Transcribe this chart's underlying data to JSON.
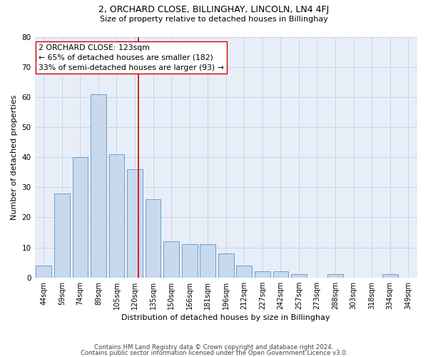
{
  "title": "2, ORCHARD CLOSE, BILLINGHAY, LINCOLN, LN4 4FJ",
  "subtitle": "Size of property relative to detached houses in Billinghay",
  "xlabel": "Distribution of detached houses by size in Billinghay",
  "ylabel": "Number of detached properties",
  "categories": [
    "44sqm",
    "59sqm",
    "74sqm",
    "89sqm",
    "105sqm",
    "120sqm",
    "135sqm",
    "150sqm",
    "166sqm",
    "181sqm",
    "196sqm",
    "212sqm",
    "227sqm",
    "242sqm",
    "257sqm",
    "273sqm",
    "288sqm",
    "303sqm",
    "318sqm",
    "334sqm",
    "349sqm"
  ],
  "values": [
    4,
    28,
    40,
    61,
    41,
    36,
    26,
    12,
    11,
    11,
    8,
    4,
    2,
    2,
    1,
    0,
    1,
    0,
    0,
    1,
    0
  ],
  "bar_color": "#c8d9ee",
  "bar_edge_color": "#6aa0cc",
  "vline_color": "#cc0000",
  "annotation_text": "2 ORCHARD CLOSE: 123sqm\n← 65% of detached houses are smaller (182)\n33% of semi-detached houses are larger (93) →",
  "annotation_box_color": "#ffffff",
  "annotation_box_edge": "#cc0000",
  "ylim": [
    0,
    80
  ],
  "yticks": [
    0,
    10,
    20,
    30,
    40,
    50,
    60,
    70,
    80
  ],
  "grid_color": "#c8d4e8",
  "background_color": "#e8eef8",
  "footer_line1": "Contains HM Land Registry data © Crown copyright and database right 2024.",
  "footer_line2": "Contains public sector information licensed under the Open Government Licence v3.0."
}
